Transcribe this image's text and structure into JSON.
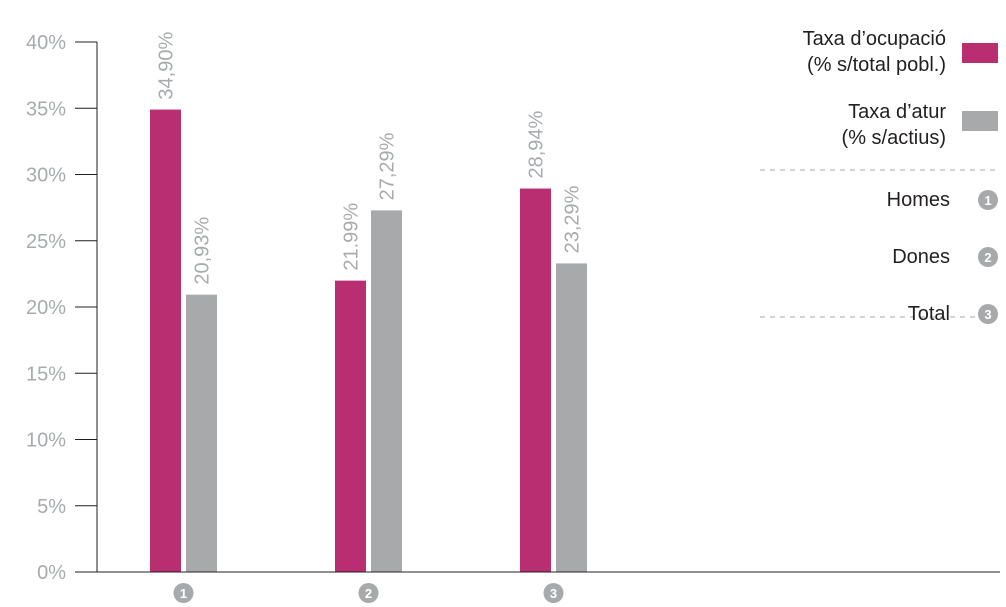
{
  "chart_data": {
    "type": "bar",
    "categories": [
      "1",
      "2",
      "3"
    ],
    "series": [
      {
        "name": "Taxa d’ocupació (% s/total pobl.)",
        "values": [
          34.9,
          21.99,
          28.94
        ],
        "labels": [
          "34,90%",
          "21.99%",
          "28,94%"
        ]
      },
      {
        "name": "Taxa d’atur (% s/actius)",
        "values": [
          20.93,
          27.29,
          23.29
        ],
        "labels": [
          "20,93%",
          "27,29%",
          "23,29%"
        ]
      }
    ],
    "y_ticks": [
      {
        "value": 0,
        "label": "0%"
      },
      {
        "value": 5,
        "label": "5%"
      },
      {
        "value": 10,
        "label": "10%"
      },
      {
        "value": 15,
        "label": "15%"
      },
      {
        "value": 20,
        "label": "20%"
      },
      {
        "value": 25,
        "label": "25%"
      },
      {
        "value": 30,
        "label": "30%"
      },
      {
        "value": 35,
        "label": "35%"
      },
      {
        "value": 40,
        "label": "40%"
      }
    ],
    "ylim": [
      0,
      40
    ],
    "grid": false,
    "legend_position": "right"
  },
  "legend": {
    "series": [
      {
        "lines": [
          "Taxa d’ocupació",
          "(% s/total pobl.)"
        ]
      },
      {
        "lines": [
          "Taxa d’atur",
          "(% s/actius)"
        ]
      }
    ],
    "category_keys": [
      {
        "label": "Homes",
        "badge": "1"
      },
      {
        "label": "Dones",
        "badge": "2"
      },
      {
        "label": "Total",
        "badge": "3"
      }
    ]
  },
  "colors": {
    "ocupacio": "#b92e70",
    "atur": "#a7a9ab",
    "axis": "#231f20",
    "badge": "#a7a9ab",
    "label": "#a8abae"
  }
}
